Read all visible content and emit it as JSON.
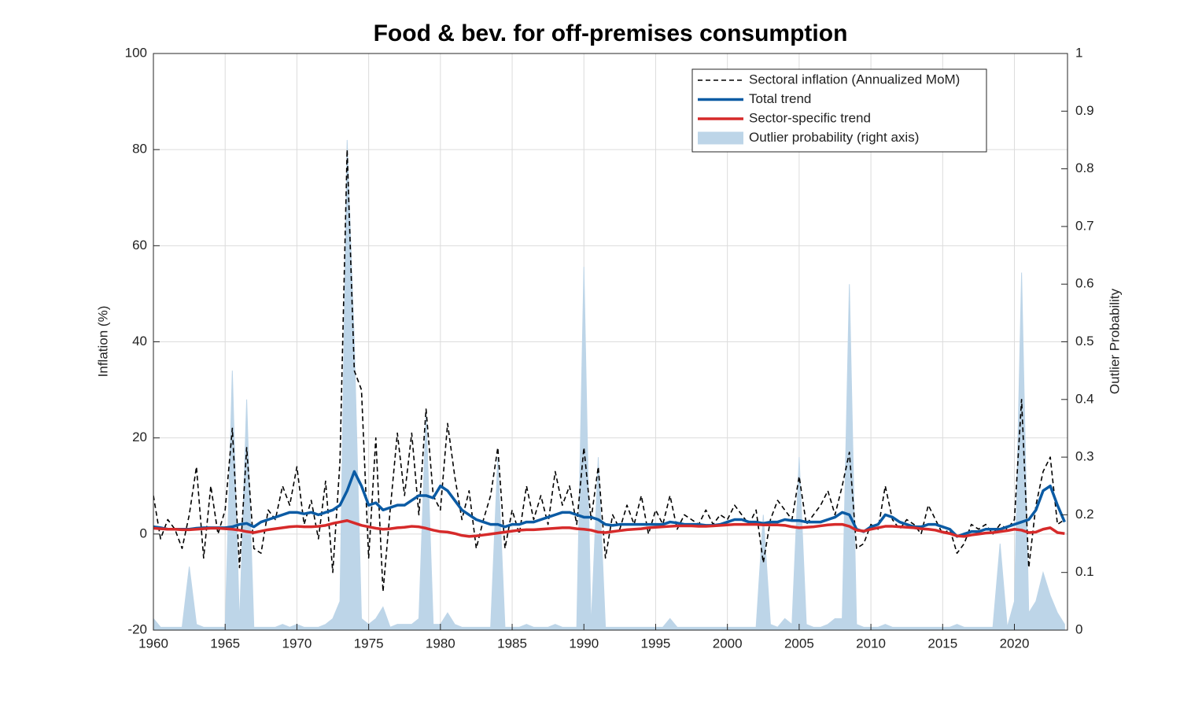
{
  "chart_data": {
    "type": "line",
    "title": "Food & bev. for off-premises consumption",
    "y_label": "Inflation (%)",
    "y2_label": "Outlier Probability",
    "xlim": [
      1960,
      2023.7
    ],
    "xticks": [
      1960,
      1965,
      1970,
      1975,
      1980,
      1985,
      1990,
      1995,
      2000,
      2005,
      2010,
      2015,
      2020
    ],
    "ylim": [
      -20,
      100
    ],
    "yticks": [
      -20,
      0,
      20,
      40,
      60,
      80,
      100
    ],
    "y2lim": [
      0,
      1
    ],
    "y2ticks": [
      0,
      0.1,
      0.2,
      0.3,
      0.4,
      0.5,
      0.6,
      0.7,
      0.8,
      0.9,
      1
    ],
    "grid": true,
    "legend_position": "upper-right",
    "x": [
      1960,
      1960.5,
      1961,
      1961.5,
      1962,
      1962.5,
      1963,
      1963.5,
      1964,
      1964.5,
      1965,
      1965.5,
      1966,
      1966.5,
      1967,
      1967.5,
      1968,
      1968.5,
      1969,
      1969.5,
      1970,
      1970.5,
      1971,
      1971.5,
      1972,
      1972.5,
      1973,
      1973.5,
      1974,
      1974.5,
      1975,
      1975.5,
      1976,
      1976.5,
      1977,
      1977.5,
      1978,
      1978.5,
      1979,
      1979.5,
      1980,
      1980.5,
      1981,
      1981.5,
      1982,
      1982.5,
      1983,
      1983.5,
      1984,
      1984.5,
      1985,
      1985.5,
      1986,
      1986.5,
      1987,
      1987.5,
      1988,
      1988.5,
      1989,
      1989.5,
      1990,
      1990.5,
      1991,
      1991.5,
      1992,
      1992.5,
      1993,
      1993.5,
      1994,
      1994.5,
      1995,
      1995.5,
      1996,
      1996.5,
      1997,
      1997.5,
      1998,
      1998.5,
      1999,
      1999.5,
      2000,
      2000.5,
      2001,
      2001.5,
      2002,
      2002.5,
      2003,
      2003.5,
      2004,
      2004.5,
      2005,
      2005.5,
      2006,
      2006.5,
      2007,
      2007.5,
      2008,
      2008.5,
      2009,
      2009.5,
      2010,
      2010.5,
      2011,
      2011.5,
      2012,
      2012.5,
      2013,
      2013.5,
      2014,
      2014.5,
      2015,
      2015.5,
      2016,
      2016.5,
      2017,
      2017.5,
      2018,
      2018.5,
      2019,
      2019.5,
      2020,
      2020.5,
      2021,
      2021.5,
      2022,
      2022.5,
      2023,
      2023.5
    ],
    "series": [
      {
        "name": "Outlier probability (right axis)",
        "color": "#bdd5e8",
        "style": "area",
        "axis": "y2",
        "values": [
          0.02,
          0.005,
          0.005,
          0.005,
          0.005,
          0.11,
          0.01,
          0.005,
          0.005,
          0.005,
          0.005,
          0.45,
          0.01,
          0.4,
          0.005,
          0.005,
          0.005,
          0.005,
          0.01,
          0.005,
          0.01,
          0.005,
          0.005,
          0.005,
          0.01,
          0.02,
          0.05,
          0.85,
          0.5,
          0.02,
          0.01,
          0.02,
          0.04,
          0.005,
          0.01,
          0.01,
          0.01,
          0.02,
          0.38,
          0.01,
          0.01,
          0.03,
          0.01,
          0.005,
          0.005,
          0.005,
          0.005,
          0.005,
          0.3,
          0.005,
          0.005,
          0.005,
          0.01,
          0.005,
          0.005,
          0.005,
          0.01,
          0.005,
          0.005,
          0.005,
          0.63,
          0.005,
          0.3,
          0.005,
          0.005,
          0.005,
          0.005,
          0.005,
          0.005,
          0.005,
          0.005,
          0.005,
          0.02,
          0.005,
          0.005,
          0.005,
          0.005,
          0.005,
          0.005,
          0.005,
          0.005,
          0.005,
          0.005,
          0.005,
          0.005,
          0.2,
          0.01,
          0.005,
          0.02,
          0.01,
          0.3,
          0.01,
          0.005,
          0.005,
          0.01,
          0.02,
          0.02,
          0.6,
          0.01,
          0.005,
          0.005,
          0.005,
          0.01,
          0.005,
          0.005,
          0.005,
          0.005,
          0.005,
          0.005,
          0.005,
          0.005,
          0.005,
          0.01,
          0.005,
          0.005,
          0.005,
          0.005,
          0.005,
          0.15,
          0.005,
          0.05,
          0.62,
          0.03,
          0.05,
          0.1,
          0.06,
          0.03,
          0.01
        ]
      },
      {
        "name": "Sectoral inflation (Annualized MoM)",
        "color": "#000000",
        "style": "dashed",
        "values": [
          8,
          -1,
          3,
          1,
          -3,
          4,
          14,
          -5,
          10,
          0,
          5,
          22,
          -7,
          18,
          -3,
          -4,
          5,
          3,
          10,
          6,
          14,
          2,
          7,
          -1,
          11,
          -8,
          15,
          80,
          34,
          30,
          -5,
          20,
          -12,
          5,
          21,
          8,
          21,
          4,
          26,
          8,
          5,
          23,
          12,
          3,
          9,
          -3,
          3,
          8,
          18,
          -3,
          5,
          0,
          10,
          3,
          8,
          2,
          13,
          6,
          10,
          2,
          18,
          3,
          14,
          -5,
          4,
          1,
          6,
          2,
          8,
          0,
          5,
          2,
          8,
          1,
          4,
          3,
          2,
          5,
          2,
          4,
          3,
          6,
          4,
          2,
          5,
          -6,
          3,
          7,
          5,
          3,
          12,
          2,
          4,
          6,
          9,
          4,
          10,
          17,
          -3,
          -2,
          2,
          1,
          10,
          3,
          1,
          3,
          2,
          0,
          6,
          3,
          0,
          1,
          -4,
          -2,
          2,
          1,
          2,
          0,
          2,
          1,
          3,
          28,
          -7,
          6,
          13,
          16,
          2,
          3
        ]
      },
      {
        "name": "Total trend",
        "color": "#0b5ba4",
        "style": "solid",
        "values": [
          1.5,
          1.3,
          1,
          1,
          1,
          1,
          1.2,
          1.3,
          1.3,
          1.3,
          1.3,
          1.5,
          2,
          2.2,
          1.5,
          2.5,
          3,
          3.5,
          4,
          4.5,
          4.5,
          4.2,
          4.5,
          4,
          4.5,
          5,
          6,
          9,
          13,
          10,
          6,
          6.5,
          5,
          5.5,
          6,
          6,
          7,
          8,
          8,
          7.5,
          10,
          9,
          7,
          5,
          4,
          3,
          2.5,
          2,
          2,
          1.5,
          2,
          2,
          2.5,
          2.5,
          3,
          3.5,
          4,
          4.5,
          4.5,
          4,
          3.5,
          3.5,
          3,
          2,
          1.8,
          2,
          2,
          2,
          2,
          2,
          2,
          2,
          2.5,
          2.3,
          2,
          2,
          2,
          1.8,
          1.8,
          2,
          2.5,
          3,
          3,
          2.5,
          2.5,
          2.2,
          2.5,
          2.5,
          3,
          2.8,
          2.8,
          2.5,
          2.5,
          2.5,
          3,
          3.5,
          4.5,
          4,
          1,
          0.5,
          1.5,
          2,
          4,
          3.5,
          2.5,
          2,
          1.5,
          1.5,
          2,
          2,
          1.5,
          1,
          -0.5,
          0,
          0.5,
          0.5,
          1,
          1,
          1,
          1.5,
          2,
          2.5,
          3,
          5,
          9,
          10,
          6,
          2.5
        ]
      },
      {
        "name": "Sector-specific trend",
        "color": "#d62a2a",
        "style": "solid",
        "values": [
          1.2,
          1.1,
          1,
          1,
          0.9,
          0.9,
          1,
          1.1,
          1.2,
          1.2,
          1.1,
          1,
          0.8,
          0.5,
          0.3,
          0.6,
          0.9,
          1.1,
          1.3,
          1.5,
          1.6,
          1.5,
          1.5,
          1.6,
          1.8,
          2.2,
          2.5,
          2.8,
          2.3,
          1.8,
          1.5,
          1.2,
          1,
          1.1,
          1.3,
          1.4,
          1.6,
          1.5,
          1.2,
          0.8,
          0.5,
          0.4,
          0.1,
          -0.3,
          -0.5,
          -0.4,
          -0.2,
          0,
          0.2,
          0.4,
          0.6,
          0.8,
          0.9,
          0.9,
          1,
          1.1,
          1.2,
          1.3,
          1.3,
          1.1,
          1,
          0.8,
          0.4,
          0.3,
          0.5,
          0.7,
          0.9,
          1,
          1.1,
          1.3,
          1.4,
          1.5,
          1.6,
          1.7,
          1.7,
          1.7,
          1.6,
          1.6,
          1.7,
          1.8,
          1.9,
          2,
          2,
          2,
          2,
          1.9,
          1.9,
          1.9,
          1.8,
          1.5,
          1.3,
          1.4,
          1.5,
          1.7,
          1.9,
          2,
          2,
          1.6,
          0.8,
          0.6,
          1,
          1.3,
          1.6,
          1.6,
          1.5,
          1.4,
          1.3,
          1.1,
          1,
          0.8,
          0.4,
          0.1,
          -0.4,
          -0.5,
          -0.2,
          0,
          0.2,
          0.3,
          0.5,
          0.7,
          1,
          0.8,
          0.3,
          0.4,
          1,
          1.3,
          0.3,
          0.1
        ]
      }
    ]
  }
}
